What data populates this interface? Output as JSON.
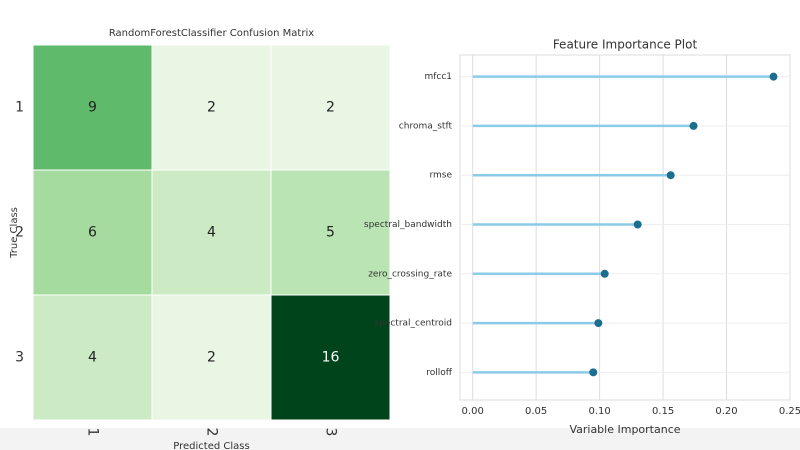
{
  "chart_data": [
    {
      "type": "heatmap",
      "title": "RandomForestClassifier Confusion Matrix",
      "x_label": "Predicted Class",
      "y_label": "True Class",
      "x_categories": [
        "1",
        "2",
        "3"
      ],
      "y_categories": [
        "1",
        "2",
        "3"
      ],
      "values": [
        [
          9,
          2,
          2
        ],
        [
          6,
          4,
          5
        ],
        [
          4,
          2,
          16
        ]
      ],
      "cmap": "Greens"
    },
    {
      "type": "lollipop",
      "title": "Feature Importance Plot",
      "x_label": "Variable Importance",
      "categories": [
        "mfcc1",
        "chroma_stft",
        "rmse",
        "spectral_bandwidth",
        "zero_crossing_rate",
        "spectral_centroid",
        "rolloff"
      ],
      "values": [
        0.237,
        0.174,
        0.156,
        0.13,
        0.104,
        0.099,
        0.095
      ],
      "xlim": [
        -0.01,
        0.25
      ],
      "xticks": [
        {
          "value": 0,
          "label": "0.00"
        },
        {
          "value": 0.05,
          "label": "0.05"
        },
        {
          "value": 0.1,
          "label": "0.10"
        },
        {
          "value": 0.15,
          "label": "0.15"
        },
        {
          "value": 0.2,
          "label": "0.20"
        },
        {
          "value": 0.25,
          "label": "0.25"
        }
      ],
      "stem_color": "#8ccbe8",
      "dot_color": "#1b6e8f",
      "grid": true
    }
  ]
}
